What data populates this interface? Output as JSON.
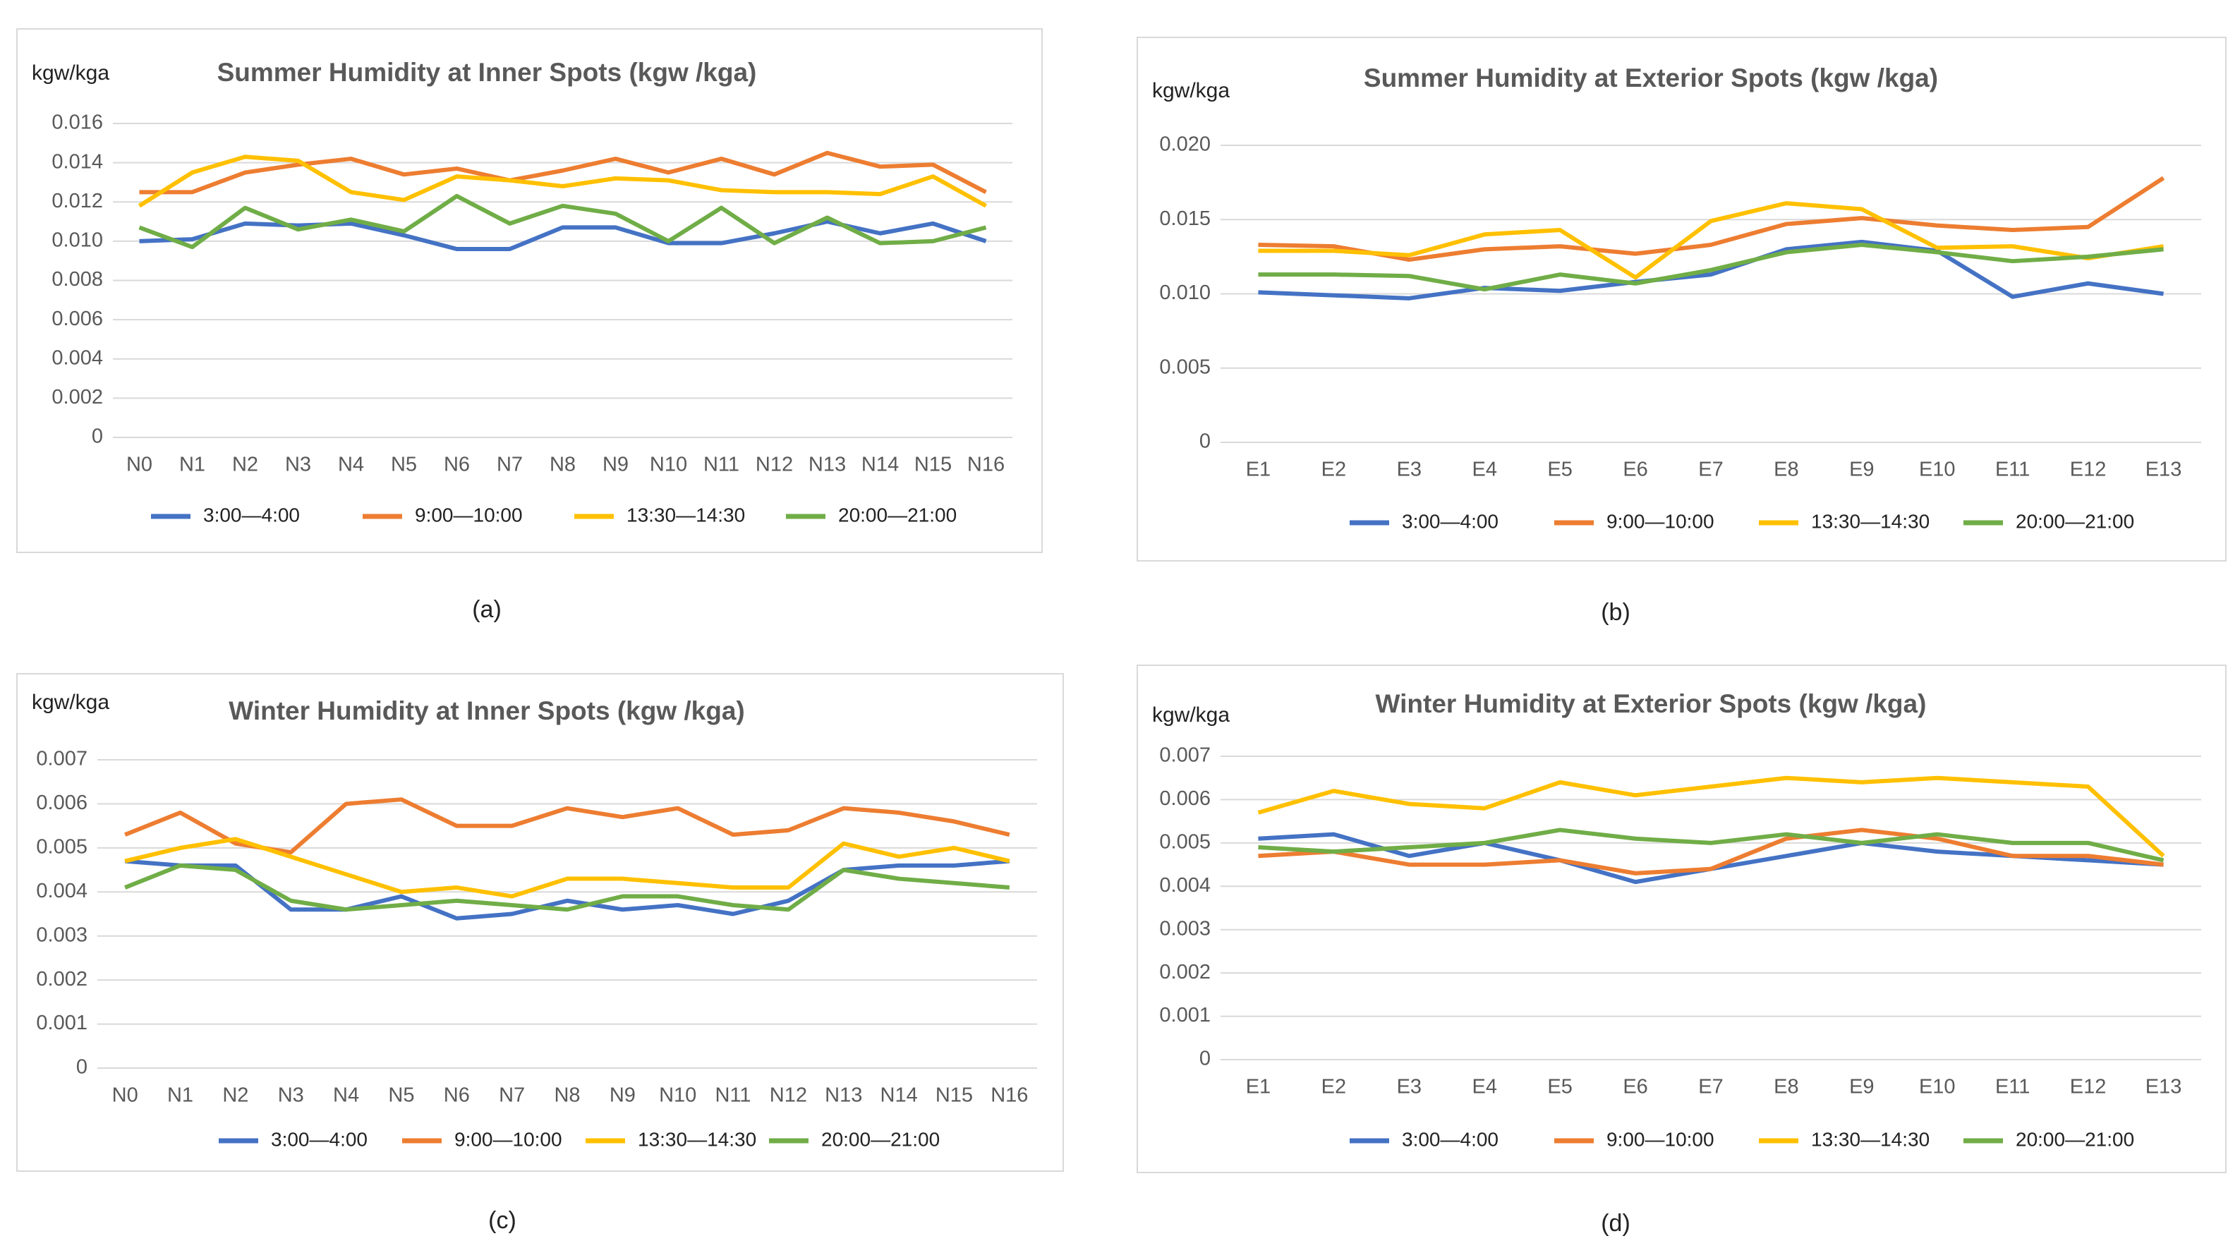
{
  "chart_data": [
    {
      "type": "line",
      "title": "Summer Humidity at Inner Spots (kgw /kga)",
      "ylabel": "kgw/kga",
      "caption": "(a)",
      "categories": [
        "N0",
        "N1",
        "N2",
        "N3",
        "N4",
        "N5",
        "N6",
        "N7",
        "N8",
        "N9",
        "N10",
        "N11",
        "N12",
        "N13",
        "N14",
        "N15",
        "N16"
      ],
      "ylim": [
        0,
        0.016
      ],
      "yticks": [
        0,
        0.002,
        0.004,
        0.006,
        0.008,
        {
          "value": 0.01,
          "label": "0.010"
        },
        0.012,
        0.014,
        0.016
      ],
      "grid": true,
      "series": [
        {
          "name": "3:00—4:00",
          "color": "#4472c4",
          "values": [
            0.01,
            0.0101,
            0.0109,
            0.0108,
            0.0109,
            0.0103,
            0.0096,
            0.0096,
            0.0107,
            0.0107,
            0.0099,
            0.0099,
            0.0104,
            0.011,
            0.0104,
            0.0109,
            0.01
          ]
        },
        {
          "name": "9:00—10:00",
          "color": "#ed7d31",
          "values": [
            0.0125,
            0.0125,
            0.0135,
            0.0139,
            0.0142,
            0.0134,
            0.0137,
            0.0131,
            0.0136,
            0.0142,
            0.0135,
            0.0142,
            0.0134,
            0.0145,
            0.0138,
            0.0139,
            0.0125
          ]
        },
        {
          "name": "13:30—14:30",
          "color": "#ffc000",
          "values": [
            0.0118,
            0.0135,
            0.0143,
            0.0141,
            0.0125,
            0.0121,
            0.0133,
            0.0131,
            0.0128,
            0.0132,
            0.0131,
            0.0126,
            0.0125,
            0.0125,
            0.0124,
            0.0133,
            0.0118
          ]
        },
        {
          "name": "20:00—21:00",
          "color": "#70ad47",
          "values": [
            0.0107,
            0.0097,
            0.0117,
            0.0106,
            0.0111,
            0.0105,
            0.0123,
            0.0109,
            0.0118,
            0.0114,
            0.01,
            0.0117,
            0.0099,
            0.0112,
            0.0099,
            0.01,
            0.0107
          ]
        }
      ]
    },
    {
      "type": "line",
      "title": "Summer Humidity at Exterior Spots (kgw /kga)",
      "ylabel": "kgw/kga",
      "caption": "(b)",
      "categories": [
        "E1",
        "E2",
        "E3",
        "E4",
        "E5",
        "E6",
        "E7",
        "E8",
        "E9",
        "E10",
        "E11",
        "E12",
        "E13"
      ],
      "ylim": [
        0,
        0.02
      ],
      "yticks": [
        0,
        0.005,
        {
          "value": 0.01,
          "label": "0.010"
        },
        0.015,
        {
          "value": 0.02,
          "label": "0.020"
        }
      ],
      "grid": true,
      "series": [
        {
          "name": "3:00—4:00",
          "color": "#4472c4",
          "values": [
            0.0101,
            0.0099,
            0.0097,
            0.0104,
            0.0102,
            0.0108,
            0.0113,
            0.013,
            0.0135,
            0.0129,
            0.0098,
            0.0107,
            0.01
          ]
        },
        {
          "name": "9:00—10:00",
          "color": "#ed7d31",
          "values": [
            0.0133,
            0.0132,
            0.0123,
            0.013,
            0.0132,
            0.0127,
            0.0133,
            0.0147,
            0.0151,
            0.0146,
            0.0143,
            0.0145,
            0.0178
          ]
        },
        {
          "name": "13:30—14:30",
          "color": "#ffc000",
          "values": [
            0.0129,
            0.0129,
            0.0126,
            0.014,
            0.0143,
            0.0111,
            0.0149,
            0.0161,
            0.0157,
            0.0131,
            0.0132,
            0.0124,
            0.0132
          ]
        },
        {
          "name": "20:00—21:00",
          "color": "#70ad47",
          "values": [
            0.0113,
            0.0113,
            0.0112,
            0.0103,
            0.0113,
            0.0107,
            0.0116,
            0.0128,
            0.0133,
            0.0128,
            0.0122,
            0.0125,
            0.013
          ]
        }
      ]
    },
    {
      "type": "line",
      "title": "Winter Humidity at Inner Spots (kgw /kga)",
      "ylabel": "kgw/kga",
      "caption": "(c)",
      "categories": [
        "N0",
        "N1",
        "N2",
        "N3",
        "N4",
        "N5",
        "N6",
        "N7",
        "N8",
        "N9",
        "N10",
        "N11",
        "N12",
        "N13",
        "N14",
        "N15",
        "N16"
      ],
      "ylim": [
        0,
        0.007
      ],
      "yticks": [
        0,
        0.001,
        0.002,
        0.003,
        0.004,
        0.005,
        0.006,
        0.007
      ],
      "grid": true,
      "series": [
        {
          "name": "3:00—4:00",
          "color": "#4472c4",
          "values": [
            0.0047,
            0.0046,
            0.0046,
            0.0036,
            0.0036,
            0.0039,
            0.0034,
            0.0035,
            0.0038,
            0.0036,
            0.0037,
            0.0035,
            0.0038,
            0.0045,
            0.0046,
            0.0046,
            0.0047
          ]
        },
        {
          "name": "9:00—10:00",
          "color": "#ed7d31",
          "values": [
            0.0053,
            0.0058,
            0.0051,
            0.0049,
            0.006,
            0.0061,
            0.0055,
            0.0055,
            0.0059,
            0.0057,
            0.0059,
            0.0053,
            0.0054,
            0.0059,
            0.0058,
            0.0056,
            0.0053
          ]
        },
        {
          "name": "13:30—14:30",
          "color": "#ffc000",
          "values": [
            0.0047,
            0.005,
            0.0052,
            0.0048,
            0.0044,
            0.004,
            0.0041,
            0.0039,
            0.0043,
            0.0043,
            0.0042,
            0.0041,
            0.0041,
            0.0051,
            0.0048,
            0.005,
            0.0047
          ]
        },
        {
          "name": "20:00—21:00",
          "color": "#70ad47",
          "values": [
            0.0041,
            0.0046,
            0.0045,
            0.0038,
            0.0036,
            0.0037,
            0.0038,
            0.0037,
            0.0036,
            0.0039,
            0.0039,
            0.0037,
            0.0036,
            0.0045,
            0.0043,
            0.0042,
            0.0041
          ]
        }
      ]
    },
    {
      "type": "line",
      "title": "Winter Humidity at Exterior Spots (kgw /kga)",
      "ylabel": "kgw/kga",
      "caption": "(d)",
      "categories": [
        "E1",
        "E2",
        "E3",
        "E4",
        "E5",
        "E6",
        "E7",
        "E8",
        "E9",
        "E10",
        "E11",
        "E12",
        "E13"
      ],
      "ylim": [
        0,
        0.007
      ],
      "yticks": [
        0,
        0.001,
        0.002,
        0.003,
        0.004,
        0.005,
        0.006,
        0.007
      ],
      "grid": true,
      "series": [
        {
          "name": "3:00—4:00",
          "color": "#4472c4",
          "values": [
            0.0051,
            0.0052,
            0.0047,
            0.005,
            0.0046,
            0.0041,
            0.0044,
            0.0047,
            0.005,
            0.0048,
            0.0047,
            0.0046,
            0.0045
          ]
        },
        {
          "name": "9:00—10:00",
          "color": "#ed7d31",
          "values": [
            0.0047,
            0.0048,
            0.0045,
            0.0045,
            0.0046,
            0.0043,
            0.0044,
            0.0051,
            0.0053,
            0.0051,
            0.0047,
            0.0047,
            0.0045
          ]
        },
        {
          "name": "13:30—14:30",
          "color": "#ffc000",
          "values": [
            0.0057,
            0.0062,
            0.0059,
            0.0058,
            0.0064,
            0.0061,
            0.0063,
            0.0065,
            0.0064,
            0.0065,
            0.0064,
            0.0063,
            0.0047
          ]
        },
        {
          "name": "20:00—21:00",
          "color": "#70ad47",
          "values": [
            0.0049,
            0.0048,
            0.0049,
            0.005,
            0.0053,
            0.0051,
            0.005,
            0.0052,
            0.005,
            0.0052,
            0.005,
            0.005,
            0.0046
          ]
        }
      ]
    }
  ]
}
